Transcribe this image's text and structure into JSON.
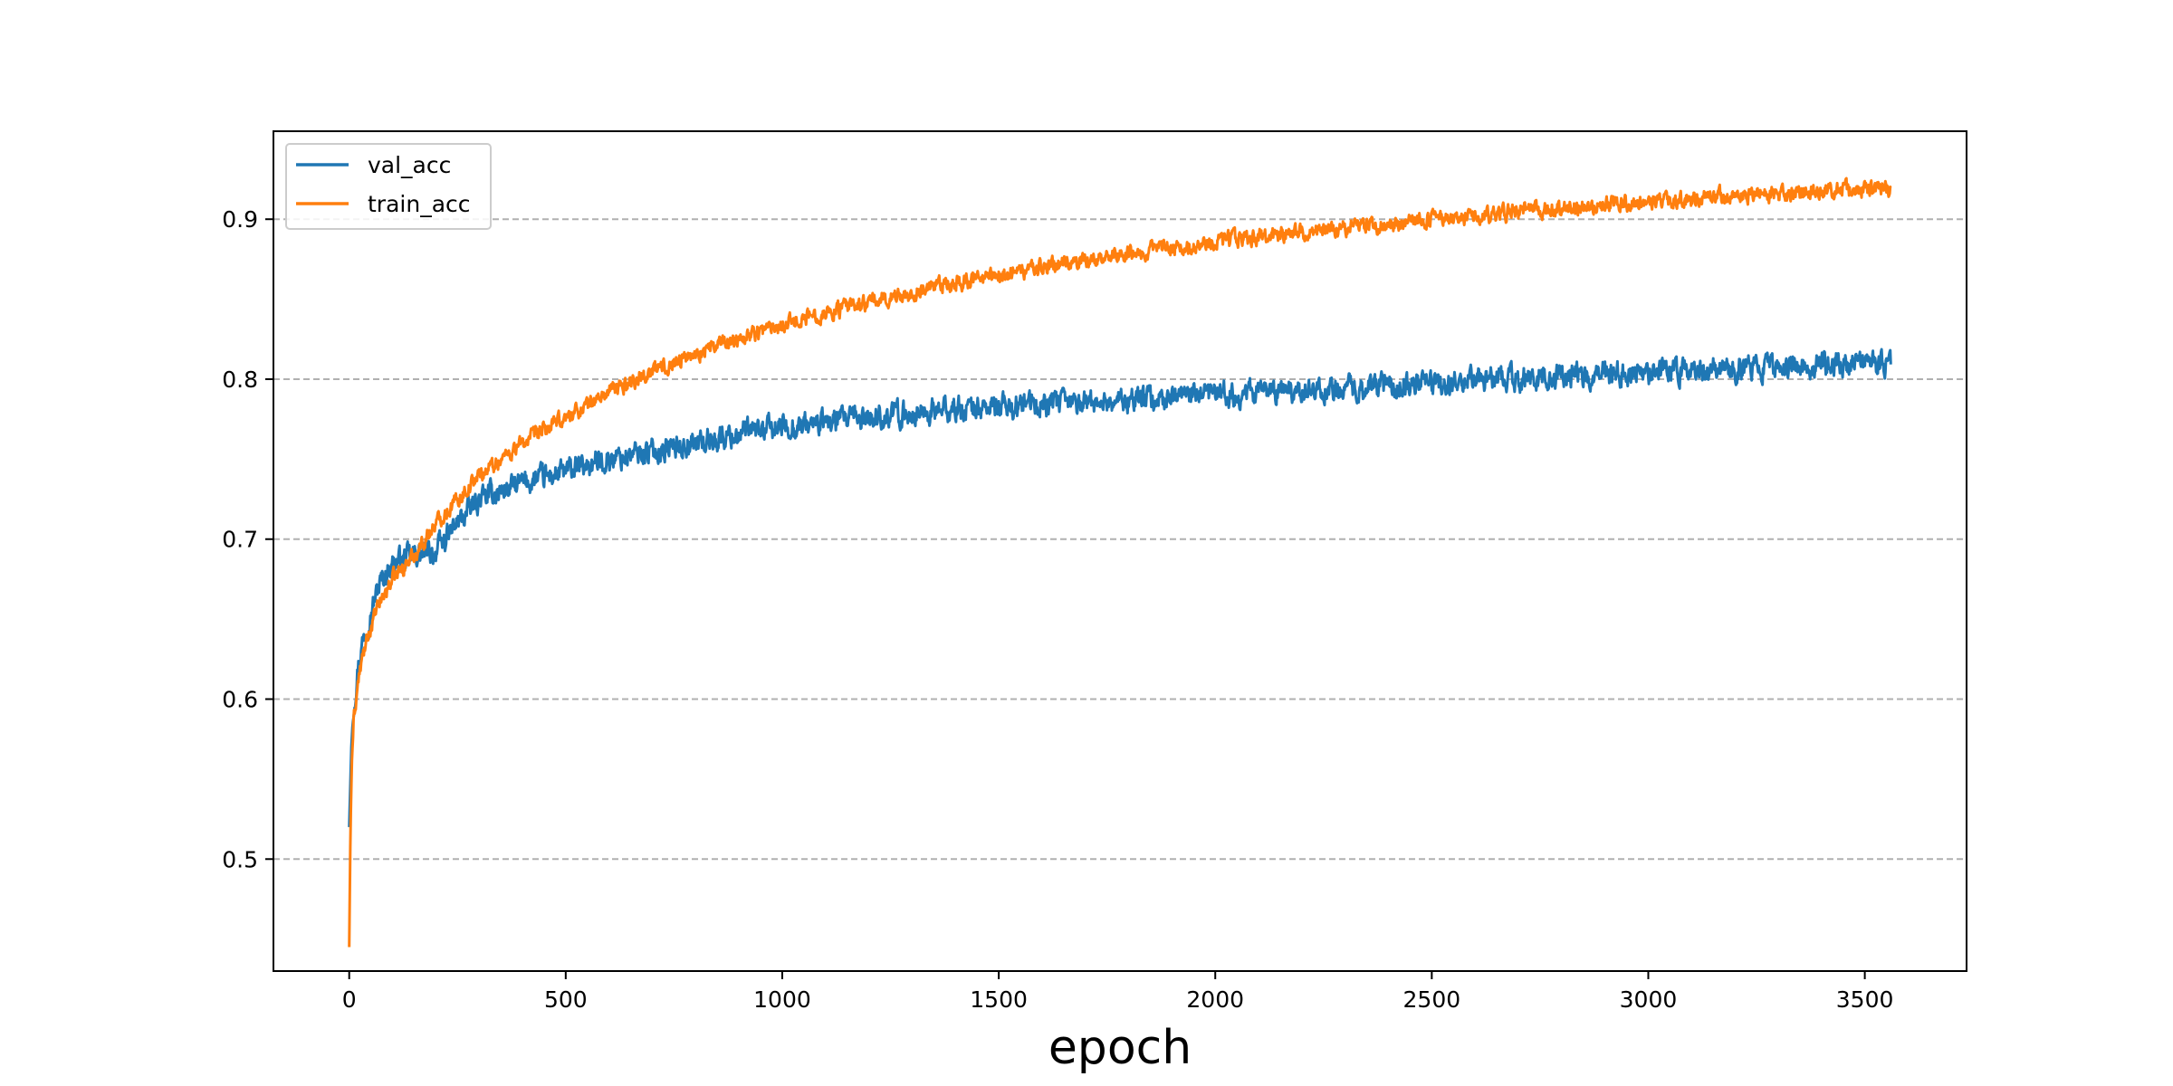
{
  "chart_data": {
    "type": "line",
    "title": "",
    "xlabel": "epoch",
    "ylabel": "",
    "xlim": [
      -175,
      3735
    ],
    "ylim": [
      0.43,
      0.955
    ],
    "xticks": [
      0,
      500,
      1000,
      1500,
      2000,
      2500,
      3000,
      3500
    ],
    "xtick_labels": [
      "0",
      "500",
      "1000",
      "1500",
      "2000",
      "2500",
      "3000",
      "3500"
    ],
    "yticks": [
      0.5,
      0.6,
      0.7,
      0.8,
      0.9
    ],
    "ytick_labels": [
      "0.5",
      "0.6",
      "0.7",
      "0.8",
      "0.9"
    ],
    "grid": {
      "axis": "y",
      "style": "dashed",
      "color": "#b0b0b0"
    },
    "legend": {
      "position": "top-left"
    },
    "series": [
      {
        "name": "val_acc",
        "color": "#1f77b4",
        "noise": 0.006,
        "points": [
          [
            0,
            0.52
          ],
          [
            5,
            0.57
          ],
          [
            10,
            0.595
          ],
          [
            20,
            0.62
          ],
          [
            30,
            0.635
          ],
          [
            50,
            0.655
          ],
          [
            70,
            0.672
          ],
          [
            100,
            0.685
          ],
          [
            150,
            0.69
          ],
          [
            200,
            0.692
          ],
          [
            250,
            0.71
          ],
          [
            300,
            0.725
          ],
          [
            400,
            0.735
          ],
          [
            500,
            0.742
          ],
          [
            600,
            0.75
          ],
          [
            700,
            0.755
          ],
          [
            800,
            0.76
          ],
          [
            900,
            0.766
          ],
          [
            1000,
            0.77
          ],
          [
            1200,
            0.776
          ],
          [
            1400,
            0.781
          ],
          [
            1600,
            0.784
          ],
          [
            1800,
            0.787
          ],
          [
            2000,
            0.79
          ],
          [
            2200,
            0.793
          ],
          [
            2400,
            0.796
          ],
          [
            2600,
            0.799
          ],
          [
            2800,
            0.802
          ],
          [
            3000,
            0.805
          ],
          [
            3200,
            0.807
          ],
          [
            3400,
            0.809
          ],
          [
            3560,
            0.81
          ]
        ]
      },
      {
        "name": "train_acc",
        "color": "#ff7f0e",
        "noise": 0.004,
        "points": [
          [
            0,
            0.445
          ],
          [
            3,
            0.52
          ],
          [
            6,
            0.56
          ],
          [
            10,
            0.585
          ],
          [
            20,
            0.61
          ],
          [
            30,
            0.625
          ],
          [
            50,
            0.645
          ],
          [
            70,
            0.66
          ],
          [
            100,
            0.675
          ],
          [
            150,
            0.69
          ],
          [
            200,
            0.71
          ],
          [
            250,
            0.725
          ],
          [
            300,
            0.74
          ],
          [
            400,
            0.76
          ],
          [
            500,
            0.776
          ],
          [
            600,
            0.792
          ],
          [
            700,
            0.805
          ],
          [
            800,
            0.816
          ],
          [
            900,
            0.826
          ],
          [
            1000,
            0.835
          ],
          [
            1200,
            0.848
          ],
          [
            1400,
            0.86
          ],
          [
            1600,
            0.87
          ],
          [
            1800,
            0.879
          ],
          [
            2000,
            0.886
          ],
          [
            2200,
            0.892
          ],
          [
            2400,
            0.897
          ],
          [
            2600,
            0.902
          ],
          [
            2800,
            0.907
          ],
          [
            3000,
            0.911
          ],
          [
            3200,
            0.915
          ],
          [
            3400,
            0.918
          ],
          [
            3560,
            0.919
          ]
        ]
      }
    ]
  }
}
